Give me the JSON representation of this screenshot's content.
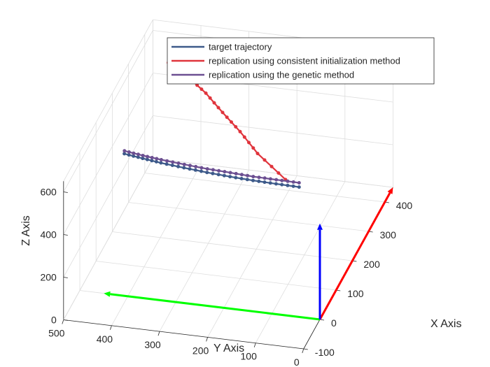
{
  "chart_data": {
    "type": "line3d",
    "title": "",
    "xlabel": "X Axis",
    "ylabel": "Y Axis",
    "zlabel": "Z Axis",
    "xlim": [
      -100,
      450
    ],
    "ylim": [
      0,
      500
    ],
    "zlim": [
      0,
      650
    ],
    "x_ticks": [
      "-100",
      "0",
      "100",
      "200",
      "300",
      "400"
    ],
    "y_ticks": [
      "0",
      "100",
      "200",
      "300",
      "400",
      "500"
    ],
    "z_ticks": [
      "0",
      "200",
      "400",
      "600"
    ],
    "grid": true,
    "box": true,
    "legend_position": "top-right",
    "series": [
      {
        "name": "target trajectory",
        "color": "#3d5a8a",
        "points": [
          [
            20,
            50,
            580
          ],
          [
            26,
            100,
            573
          ],
          [
            32,
            150,
            567
          ],
          [
            38,
            200,
            563
          ],
          [
            44,
            250,
            561
          ],
          [
            50,
            300,
            561
          ],
          [
            56,
            350,
            562
          ],
          [
            62,
            390,
            564
          ],
          [
            67,
            430,
            568
          ]
        ]
      },
      {
        "name": "replication using consistent initialization method",
        "color": "#e0343c",
        "points": [
          [
            25,
            80,
            600
          ],
          [
            60,
            150,
            655
          ],
          [
            100,
            200,
            689
          ],
          [
            140,
            250,
            710
          ],
          [
            185,
            300,
            725
          ],
          [
            225,
            350,
            731
          ],
          [
            250,
            385,
            731
          ],
          [
            265,
            405,
            729
          ]
        ]
      },
      {
        "name": "replication using the genetic method",
        "color": "#6c4f91",
        "points": [
          [
            20,
            50,
            600
          ],
          [
            27,
            100,
            591
          ],
          [
            33,
            150,
            584
          ],
          [
            40,
            200,
            579
          ],
          [
            46,
            250,
            575
          ],
          [
            52,
            300,
            574
          ],
          [
            58,
            350,
            574
          ],
          [
            63,
            390,
            576
          ],
          [
            68,
            430,
            580
          ]
        ]
      }
    ],
    "arrows": [
      {
        "name": "x-direction arrow",
        "color": "#ff0000",
        "from": [
          0,
          0,
          0
        ],
        "to": [
          450,
          0,
          0
        ]
      },
      {
        "name": "y-direction arrow",
        "color": "#00ff00",
        "from": [
          0,
          0,
          0
        ],
        "to": [
          0,
          450,
          0
        ]
      },
      {
        "name": "z-direction arrow",
        "color": "#0000ff",
        "from": [
          0,
          0,
          0
        ],
        "to": [
          0,
          0,
          450
        ]
      }
    ]
  }
}
